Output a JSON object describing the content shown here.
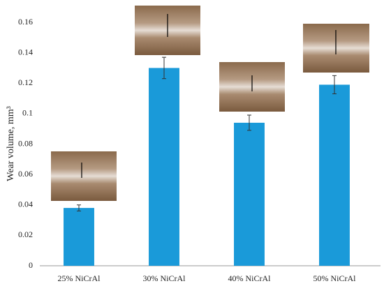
{
  "chart_data": {
    "type": "bar",
    "y_label": "Wear volume, mm³",
    "categories": [
      "25% NiCrAl",
      "30% NiCrAl",
      "40% NiCrAl",
      "50% NiCrAl"
    ],
    "values": [
      0.038,
      0.13,
      0.094,
      0.119
    ],
    "errors": [
      0.002,
      0.007,
      0.005,
      0.006
    ],
    "color": "#1a9ad9",
    "ylim": [
      0,
      0.16
    ],
    "yticks": [
      0,
      0.02,
      0.04,
      0.06,
      0.08,
      0.1,
      0.12,
      0.14,
      0.16
    ],
    "grid": false
  }
}
